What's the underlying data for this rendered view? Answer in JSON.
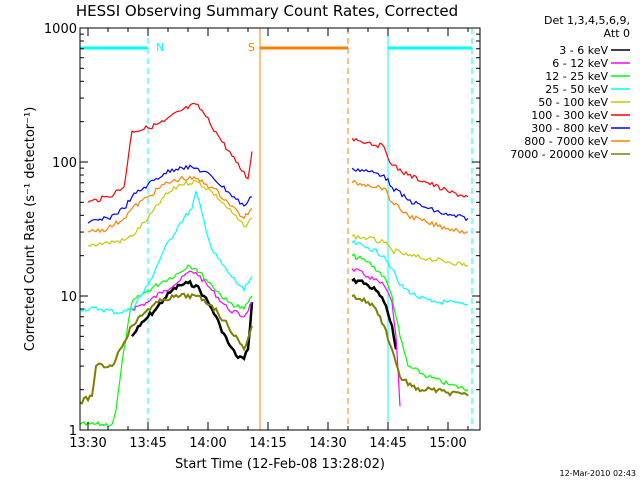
{
  "chart_data": {
    "type": "line",
    "title": "HESSI Observing Summary Count Rates, Corrected",
    "xlabel": "Start Time (12-Feb-08 13:28:02)",
    "ylabel": "Corrected Count Rate (s⁻¹ detector⁻¹)",
    "ylog": true,
    "ylim": [
      1,
      1000
    ],
    "xlim": [
      "13:28",
      "15:08"
    ],
    "x_tick_labels": [
      "13:30",
      "13:45",
      "14:00",
      "14:15",
      "14:30",
      "14:45",
      "15:00"
    ],
    "y_tick_labels": [
      "1",
      "10",
      "100",
      "1000"
    ],
    "grid": false,
    "legend_position": "right",
    "legend_header": [
      "Det 1,3,4,5,6,9,",
      "Att 0"
    ],
    "footer": "12-Mar-2010 02:43",
    "annotations": [
      {
        "text": "N",
        "color": "#00ffff"
      },
      {
        "text": "S",
        "color": "#ff8000"
      }
    ],
    "series": [
      {
        "name": "3 - 6 keV",
        "color": "#000000",
        "segments": [
          {
            "x": [
              "13:41",
              "13:43",
              "13:45",
              "13:47",
              "13:49",
              "13:51",
              "13:53",
              "13:55",
              "13:57",
              "13:59",
              "14:01",
              "14:03",
              "14:05",
              "14:07",
              "14:09",
              "14:10",
              "14:11"
            ],
            "y": [
              5,
              6,
              7,
              8,
              9.5,
              11,
              12,
              12.5,
              12,
              10,
              8,
              6,
              4.5,
              3.6,
              3.4,
              4,
              9
            ]
          },
          {
            "x": [
              "14:36",
              "14:38",
              "14:40",
              "14:42",
              "14:44",
              "14:46",
              "14:47"
            ],
            "y": [
              13,
              13,
              12,
              11,
              9,
              6,
              4
            ]
          }
        ]
      },
      {
        "name": "6 - 12 keV",
        "color": "#ff00ff",
        "segments": [
          {
            "x": [
              "13:41",
              "13:45",
              "13:49",
              "13:53",
              "13:55",
              "13:57",
              "14:01",
              "14:05",
              "14:09",
              "14:11"
            ],
            "y": [
              8,
              9,
              11,
              13,
              15,
              15,
              11,
              8,
              7,
              9
            ]
          },
          {
            "x": [
              "14:36",
              "14:40",
              "14:44",
              "14:46",
              "14:47",
              "14:48"
            ],
            "y": [
              16,
              14,
              12,
              9,
              5,
              1.5
            ]
          }
        ]
      },
      {
        "name": "12 - 25 keV",
        "color": "#00ff00",
        "segments": [
          {
            "x": [
              "13:28",
              "13:36",
              "13:37",
              "13:39",
              "13:41",
              "13:45",
              "13:49",
              "13:53",
              "13:55",
              "13:57",
              "14:01",
              "14:05",
              "14:09",
              "14:11"
            ],
            "y": [
              1.1,
              1.1,
              1.4,
              4,
              9,
              11,
              13,
              15,
              17,
              16,
              12,
              9,
              8,
              10
            ]
          },
          {
            "x": [
              "14:36",
              "14:40",
              "14:44",
              "14:46",
              "14:48",
              "14:50",
              "14:55",
              "15:00",
              "15:05"
            ],
            "y": [
              20,
              18,
              14,
              10,
              5,
              3,
              2.5,
              2.2,
              2
            ]
          }
        ]
      },
      {
        "name": "25 - 50 keV",
        "color": "#00ffff",
        "segments": [
          {
            "x": [
              "13:28",
              "13:33",
              "13:38",
              "13:41",
              "13:45",
              "13:49",
              "13:53",
              "13:56",
              "13:57",
              "14:01",
              "14:05",
              "14:09",
              "14:11"
            ],
            "y": [
              8,
              8,
              7.5,
              8,
              12,
              22,
              35,
              45,
              60,
              22,
              15,
              11,
              14
            ]
          },
          {
            "x": [
              "14:36",
              "14:40",
              "14:44",
              "14:46",
              "14:48",
              "14:52",
              "14:56",
              "15:00",
              "15:05"
            ],
            "y": [
              25,
              23,
              20,
              16,
              12,
              10,
              9,
              9,
              8.5
            ]
          }
        ]
      },
      {
        "name": "50 - 100 keV",
        "color": "#c8c800",
        "segments": [
          {
            "x": [
              "13:30",
              "13:35",
              "13:39",
              "13:41",
              "13:45",
              "13:49",
              "13:53",
              "13:57",
              "14:01",
              "14:05",
              "14:09",
              "14:11"
            ],
            "y": [
              24,
              25,
              26,
              28,
              38,
              55,
              68,
              72,
              60,
              45,
              33,
              38
            ]
          },
          {
            "x": [
              "14:36",
              "14:40",
              "14:44",
              "14:46",
              "14:50",
              "14:55",
              "15:00",
              "15:05"
            ],
            "y": [
              28,
              27,
              25,
              22,
              20,
              19,
              18,
              17
            ]
          }
        ]
      },
      {
        "name": "100 - 300 keV",
        "color": "#ff0000",
        "segments": [
          {
            "x": [
              "13:30",
              "13:35",
              "13:39",
              "13:41",
              "13:45",
              "13:49",
              "13:53",
              "13:57",
              "13:59",
              "14:03",
              "14:07",
              "14:10",
              "14:11"
            ],
            "y": [
              50,
              55,
              65,
              170,
              180,
              200,
              240,
              270,
              230,
              150,
              100,
              75,
              120
            ]
          },
          {
            "x": [
              "14:36",
              "14:40",
              "14:44",
              "14:46",
              "14:50",
              "14:55",
              "15:00",
              "15:05"
            ],
            "y": [
              150,
              140,
              130,
              95,
              80,
              70,
              60,
              55
            ]
          }
        ]
      },
      {
        "name": "300 - 800 keV",
        "color": "#0000ff",
        "segments": [
          {
            "x": [
              "13:30",
              "13:35",
              "13:39",
              "13:41",
              "13:45",
              "13:49",
              "13:53",
              "13:57",
              "14:01",
              "14:05",
              "14:09",
              "14:11"
            ],
            "y": [
              35,
              38,
              45,
              55,
              68,
              82,
              92,
              90,
              78,
              60,
              47,
              55
            ]
          },
          {
            "x": [
              "14:36",
              "14:40",
              "14:44",
              "14:46",
              "14:50",
              "14:55",
              "15:00",
              "15:05"
            ],
            "y": [
              90,
              85,
              80,
              65,
              52,
              45,
              40,
              38
            ]
          }
        ]
      },
      {
        "name": "800 - 7000 keV",
        "color": "#ff8000",
        "segments": [
          {
            "x": [
              "13:30",
              "13:35",
              "13:39",
              "13:41",
              "13:45",
              "13:49",
              "13:53",
              "13:57",
              "14:01",
              "14:05",
              "14:09",
              "14:11"
            ],
            "y": [
              30,
              32,
              38,
              45,
              55,
              68,
              75,
              75,
              65,
              50,
              38,
              45
            ]
          },
          {
            "x": [
              "14:36",
              "14:40",
              "14:44",
              "14:46",
              "14:50",
              "14:55",
              "15:00",
              "15:05"
            ],
            "y": [
              70,
              68,
              64,
              50,
              40,
              35,
              32,
              30
            ]
          }
        ]
      },
      {
        "name": "7000 - 20000 keV",
        "color": "#808000",
        "segments": [
          {
            "x": [
              "13:28",
              "13:31",
              "13:32",
              "13:36",
              "13:38",
              "13:41",
              "13:45",
              "13:49",
              "13:53",
              "13:57",
              "14:01",
              "14:05",
              "14:09",
              "14:11"
            ],
            "y": [
              1.6,
              1.8,
              3,
              3,
              4,
              6,
              8,
              9.5,
              10,
              10,
              8.5,
              6,
              4,
              6
            ]
          },
          {
            "x": [
              "14:36",
              "14:38",
              "14:40",
              "14:42",
              "14:44",
              "14:46",
              "14:48",
              "14:52",
              "14:56",
              "15:00",
              "15:05"
            ],
            "y": [
              10,
              9.5,
              9,
              8,
              6,
              4,
              2.5,
              2,
              2,
              1.9,
              1.8
            ]
          }
        ]
      }
    ],
    "attenuator_bars": [
      {
        "color": "#00ffff",
        "x_start": "13:28",
        "x_end": "13:45"
      },
      {
        "color": "#ff8000",
        "x_start": "14:13",
        "x_end": "14:35"
      },
      {
        "color": "#00ffff",
        "x_start": "14:45",
        "x_end": "15:06"
      }
    ],
    "vertical_markers": [
      {
        "x": "13:45",
        "color": "#00ffff",
        "style": "dashed"
      },
      {
        "x": "14:13",
        "color": "#ff8000",
        "style": "solid"
      },
      {
        "x": "14:35",
        "color": "#ff8000",
        "style": "dashed"
      },
      {
        "x": "14:45",
        "color": "#00ffff",
        "style": "solid"
      },
      {
        "x": "15:06",
        "color": "#00ffff",
        "style": "dashed"
      }
    ]
  }
}
